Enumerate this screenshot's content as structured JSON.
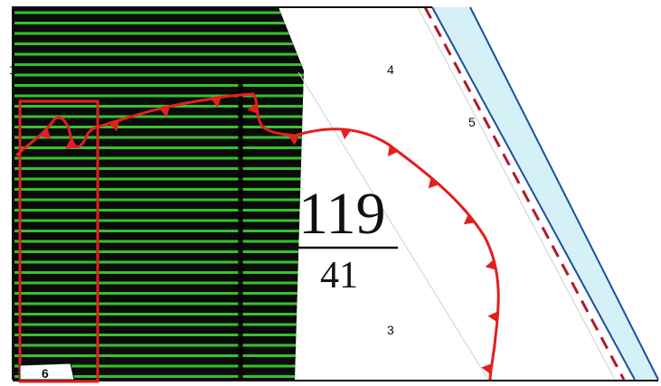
{
  "map": {
    "zone_labels": {
      "zone_1": "1",
      "zone_3": "3",
      "zone_4": "4",
      "zone_5": "5",
      "zone_6": "6"
    },
    "parcel_fraction": {
      "numerator": "119",
      "denominator": "41"
    },
    "colors": {
      "hatch_background": "#0a0a0a",
      "hatch_lines": "#35c22a",
      "boundary_red": "#e41e1e",
      "dashed_red": "#b01a2a",
      "water_fill": "#d6f0f7",
      "water_edge": "#1c4fa0",
      "outline": "#111111"
    }
  }
}
